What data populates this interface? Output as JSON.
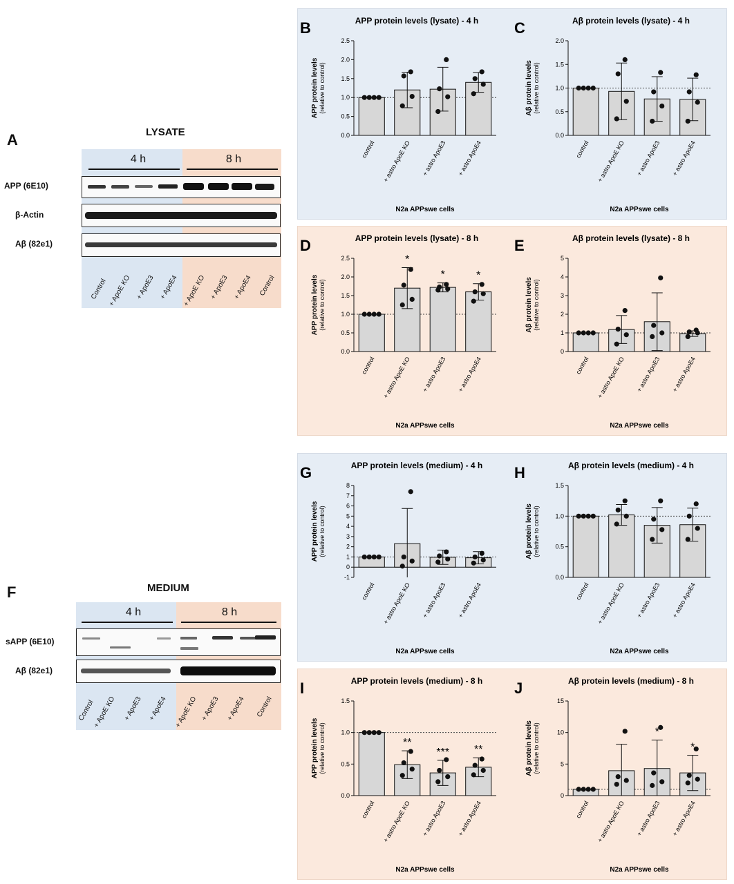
{
  "colors": {
    "blue_bg": "#e6edf5",
    "peach_bg": "#fbe9dd",
    "bar_fill": "#d7d7d7",
    "blot_blue": "#dbe6f2",
    "blot_peach": "#f7dccb"
  },
  "blots": {
    "lysate": {
      "letter": "A",
      "title": "LYSATE",
      "group_labels": [
        "4 h",
        "8 h"
      ],
      "rows": [
        "APP (6E10)",
        "β-Actin",
        "Aβ (82e1)"
      ],
      "lanes": [
        "Control",
        "+ ApoE KO",
        "+ ApoE3",
        "+ ApoE4",
        "+ ApoE KO",
        "+ ApoE3",
        "+ ApoE4",
        "Control"
      ]
    },
    "medium": {
      "letter": "F",
      "title": "MEDIUM",
      "group_labels": [
        "4 h",
        "8 h"
      ],
      "rows": [
        "sAPP (6E10)",
        "Aβ (82e1)"
      ],
      "lanes": [
        "Control",
        "+ ApoE KO",
        "+ ApoE3",
        "+ ApoE4",
        "+ ApoE KO",
        "+ ApoE3",
        "+ ApoE4",
        "Control"
      ]
    }
  },
  "chart_data": [
    {
      "id": "B",
      "type": "bar",
      "title": "APP protein levels (lysate) - 4 h",
      "ylabel": "APP protein levels",
      "ylabel2": "(relative to control)",
      "xlabel": "N2a APPswe cells",
      "categories": [
        "control",
        "+ astro ApoE KO",
        "+ astro ApoE3",
        "+ astro ApoE4"
      ],
      "values": [
        1.0,
        1.2,
        1.22,
        1.4
      ],
      "sd": [
        0,
        0.47,
        0.58,
        0.26
      ],
      "points": [
        [
          1,
          1,
          1,
          1
        ],
        [
          0.78,
          1.03,
          1.57,
          1.68
        ],
        [
          0.63,
          1.02,
          1.23,
          2.0
        ],
        [
          1.1,
          1.35,
          1.5,
          1.68
        ]
      ],
      "ylim": [
        0,
        2.5
      ],
      "yticks": [
        0,
        0.5,
        1.0,
        1.5,
        2.0,
        2.5
      ],
      "reference": 1.0,
      "bg": "blue",
      "stars": [
        "",
        "",
        "",
        ""
      ]
    },
    {
      "id": "C",
      "type": "bar",
      "title": "Aβ protein levels (lysate) - 4 h",
      "ylabel": "Aβ protein levels",
      "ylabel2": "(relative to control)",
      "xlabel": "N2a APPswe cells",
      "categories": [
        "control",
        "+ astro ApoE KO",
        "+ astro ApoE3",
        "+ astro ApoE4"
      ],
      "values": [
        1.0,
        0.93,
        0.77,
        0.76
      ],
      "sd": [
        0,
        0.6,
        0.47,
        0.45
      ],
      "points": [
        [
          1,
          1,
          1,
          1
        ],
        [
          0.35,
          0.72,
          1.3,
          1.6
        ],
        [
          0.3,
          0.62,
          0.92,
          1.33
        ],
        [
          0.3,
          0.7,
          0.92,
          1.28
        ]
      ],
      "ylim": [
        0,
        2.0
      ],
      "yticks": [
        0,
        0.5,
        1.0,
        1.5,
        2.0
      ],
      "reference": 1.0,
      "bg": "blue",
      "stars": [
        "",
        "",
        "",
        ""
      ]
    },
    {
      "id": "D",
      "type": "bar",
      "title": "APP protein levels (lysate) - 8 h",
      "ylabel": "APP protein levels",
      "ylabel2": "(relative to control)",
      "xlabel": "N2a APPswe cells",
      "categories": [
        "control",
        "+ astro ApoE KO",
        "+ astro ApoE3",
        "+ astro ApoE4"
      ],
      "values": [
        1.0,
        1.7,
        1.72,
        1.6
      ],
      "sd": [
        0,
        0.55,
        0.12,
        0.22
      ],
      "points": [
        [
          1,
          1,
          1,
          1
        ],
        [
          1.25,
          1.4,
          1.78,
          2.2
        ],
        [
          1.65,
          1.68,
          1.73,
          1.8
        ],
        [
          1.35,
          1.55,
          1.6,
          1.8
        ]
      ],
      "ylim": [
        0,
        2.5
      ],
      "yticks": [
        0,
        0.5,
        1.0,
        1.5,
        2.0,
        2.5
      ],
      "reference": 1.0,
      "bg": "peach",
      "stars": [
        "",
        "*",
        "*",
        "*"
      ]
    },
    {
      "id": "E",
      "type": "bar",
      "title": "Aβ protein levels (lysate) - 8 h",
      "ylabel": "Aβ protein levels",
      "ylabel2": "(relative to control)",
      "xlabel": "N2a APPswe cells",
      "categories": [
        "control",
        "+ astro ApoE KO",
        "+ astro ApoE3",
        "+ astro ApoE4"
      ],
      "values": [
        1.0,
        1.18,
        1.6,
        0.96
      ],
      "sd": [
        0,
        0.75,
        1.55,
        0.15
      ],
      "points": [
        [
          1,
          1,
          1,
          1
        ],
        [
          0.4,
          0.9,
          1.2,
          2.2
        ],
        [
          0.8,
          1.0,
          1.4,
          3.95
        ],
        [
          0.8,
          1.0,
          1.05,
          1.15
        ]
      ],
      "ylim": [
        0,
        5
      ],
      "yticks": [
        0,
        1,
        2,
        3,
        4,
        5
      ],
      "reference": 1.0,
      "bg": "peach",
      "stars": [
        "",
        "",
        "",
        ""
      ]
    },
    {
      "id": "G",
      "type": "bar",
      "title": "APP protein levels (medium) - 4 h",
      "ylabel": "APP protein levels",
      "ylabel2": "(relative to control)",
      "xlabel": "N2a APPswe cells",
      "categories": [
        "control",
        "+ astro ApoE KO",
        "+ astro ApoE3",
        "+ astro ApoE4"
      ],
      "values": [
        1.0,
        2.3,
        0.97,
        0.92
      ],
      "sd": [
        0,
        3.45,
        0.7,
        0.6
      ],
      "points": [
        [
          1,
          1,
          1,
          1
        ],
        [
          0.1,
          0.6,
          1.0,
          7.4
        ],
        [
          0.5,
          0.8,
          1.1,
          1.5
        ],
        [
          0.4,
          0.7,
          1.0,
          1.35
        ]
      ],
      "ylim": [
        -1,
        8
      ],
      "yticks": [
        -1,
        0,
        1,
        2,
        3,
        4,
        5,
        6,
        7,
        8
      ],
      "reference": 1.0,
      "bg": "blue",
      "stars": [
        "",
        "",
        "",
        ""
      ]
    },
    {
      "id": "H",
      "type": "bar",
      "title": "Aβ protein levels (medium) - 4 h",
      "ylabel": "Aβ protein levels",
      "ylabel2": "(relative to control)",
      "xlabel": "N2a APPswe cells",
      "categories": [
        "control",
        "+ astro ApoE KO",
        "+ astro ApoE3",
        "+ astro ApoE4"
      ],
      "values": [
        1.0,
        1.02,
        0.85,
        0.86
      ],
      "sd": [
        0,
        0.17,
        0.29,
        0.27
      ],
      "points": [
        [
          1,
          1,
          1,
          1
        ],
        [
          0.87,
          1.0,
          1.1,
          1.25
        ],
        [
          0.62,
          0.78,
          0.95,
          1.25
        ],
        [
          0.62,
          0.8,
          1.0,
          1.2
        ]
      ],
      "ylim": [
        0,
        1.5
      ],
      "yticks": [
        0,
        0.5,
        1.0,
        1.5
      ],
      "reference": 1.0,
      "bg": "blue",
      "stars": [
        "",
        "",
        "",
        ""
      ]
    },
    {
      "id": "I",
      "type": "bar",
      "title": "APP protein levels (medium) - 8 h",
      "ylabel": "APP protein levels",
      "ylabel2": "(relative to control)",
      "xlabel": "N2a APPswe cells",
      "categories": [
        "control",
        "+ astro ApoE KO",
        "+ astro ApoE3",
        "+ astro ApoE4"
      ],
      "values": [
        1.0,
        0.49,
        0.36,
        0.45
      ],
      "sd": [
        0,
        0.22,
        0.2,
        0.15
      ],
      "points": [
        [
          1,
          1,
          1,
          1
        ],
        [
          0.32,
          0.42,
          0.52,
          0.7
        ],
        [
          0.22,
          0.3,
          0.4,
          0.57
        ],
        [
          0.33,
          0.4,
          0.48,
          0.58
        ]
      ],
      "ylim": [
        0,
        1.5
      ],
      "yticks": [
        0,
        0.5,
        1.0,
        1.5
      ],
      "reference": 1.0,
      "bg": "peach",
      "stars": [
        "",
        "**",
        "***",
        "**"
      ]
    },
    {
      "id": "J",
      "type": "bar",
      "title": "Aβ protein levels (medium) - 8 h",
      "ylabel": "Aβ protein levels",
      "ylabel2": "(relative to control)",
      "xlabel": "N2a APPswe cells",
      "categories": [
        "control",
        "+ astro ApoE KO",
        "+ astro ApoE3",
        "+ astro ApoE4"
      ],
      "values": [
        1.0,
        3.95,
        4.3,
        3.6
      ],
      "sd": [
        0,
        4.2,
        4.5,
        2.8
      ],
      "points": [
        [
          1,
          1,
          1,
          1
        ],
        [
          1.8,
          2.4,
          3.0,
          10.2
        ],
        [
          1.6,
          2.2,
          3.6,
          10.8
        ],
        [
          2.0,
          2.6,
          3.2,
          7.4
        ]
      ],
      "ylim": [
        0,
        15
      ],
      "yticks": [
        0,
        5,
        10,
        15
      ],
      "reference": 1.0,
      "bg": "peach",
      "stars": [
        "",
        "",
        "*",
        "*"
      ]
    }
  ]
}
